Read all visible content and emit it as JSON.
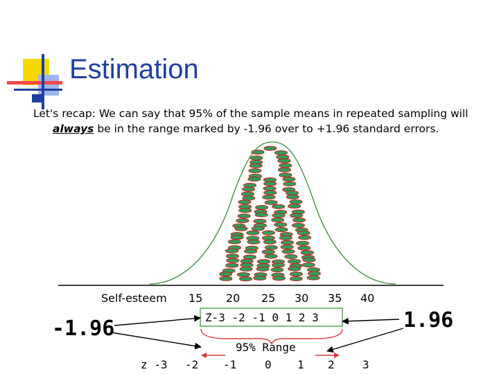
{
  "slide": {
    "title": "Estimation",
    "recap": {
      "line1": "Let's recap:  We can say that 95% of the sample means in repeated sampling will",
      "emphasis": "always",
      "line2_rest": " be in the range marked by -1.96 over to +1.96 standard errors."
    }
  },
  "axis": {
    "label": "Self-esteem",
    "ticks": [
      "15",
      "20",
      "25",
      "30",
      "35",
      "40"
    ]
  },
  "z_box_text": "Z-3 -2 -1 0  1 2  3",
  "left_value": "-1.96",
  "right_value": "1.96",
  "range_label": "95% Range",
  "z_row": {
    "prefix": "z -3",
    "ticks": [
      "-2",
      "-1",
      "0",
      "1",
      "2",
      "3"
    ]
  },
  "colors": {
    "title": "#1f3fa0",
    "ellipse_fill": "#2e9e5e",
    "ellipse_stroke": "#c0281a",
    "curve": "#3a8a3a",
    "z_box_border": "#2f8f2f",
    "bracket": "#d33b3b",
    "logo_yellow": "#f5d800",
    "logo_red": "#f24a4a",
    "logo_blue": "#1f3fa0"
  }
}
